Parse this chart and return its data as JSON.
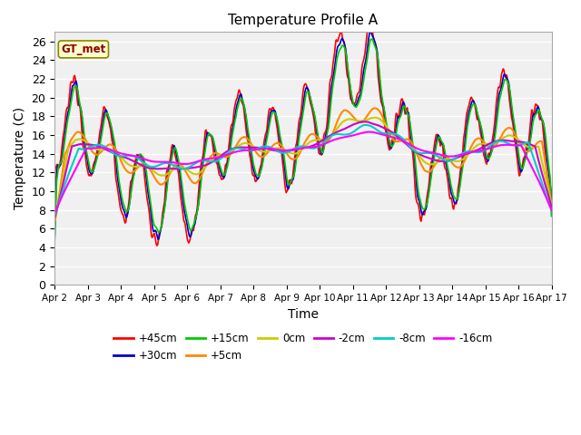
{
  "title": "Temperature Profile A",
  "xlabel": "Time",
  "ylabel": "Temperature (C)",
  "ylim": [
    0,
    27
  ],
  "yticks": [
    0,
    2,
    4,
    6,
    8,
    10,
    12,
    14,
    16,
    18,
    20,
    22,
    24,
    26
  ],
  "x_labels": [
    "Apr 2",
    "Apr 3",
    "Apr 4",
    "Apr 5",
    "Apr 6",
    "Apr 7",
    "Apr 8",
    "Apr 9",
    "Apr 10",
    "Apr 11",
    "Apr 12",
    "Apr 13",
    "Apr 14",
    "Apr 15",
    "Apr 16",
    "Apr 17"
  ],
  "annotation_text": "GT_met",
  "annotation_color": "#8B0000",
  "annotation_bg": "#FFFFCC",
  "plot_bg": "#F0F0F0",
  "grid_color": "#FFFFFF",
  "series_colors": {
    "+45cm": "#FF0000",
    "+30cm": "#0000CC",
    "+15cm": "#00CC00",
    "+5cm": "#FF8800",
    "0cm": "#CCCC00",
    "-2cm": "#CC00CC",
    "-8cm": "#00CCCC",
    "-16cm": "#FF00FF"
  },
  "legend_order": [
    "+45cm",
    "+30cm",
    "+15cm",
    "+5cm",
    "0cm",
    "-2cm",
    "-8cm",
    "-16cm"
  ]
}
